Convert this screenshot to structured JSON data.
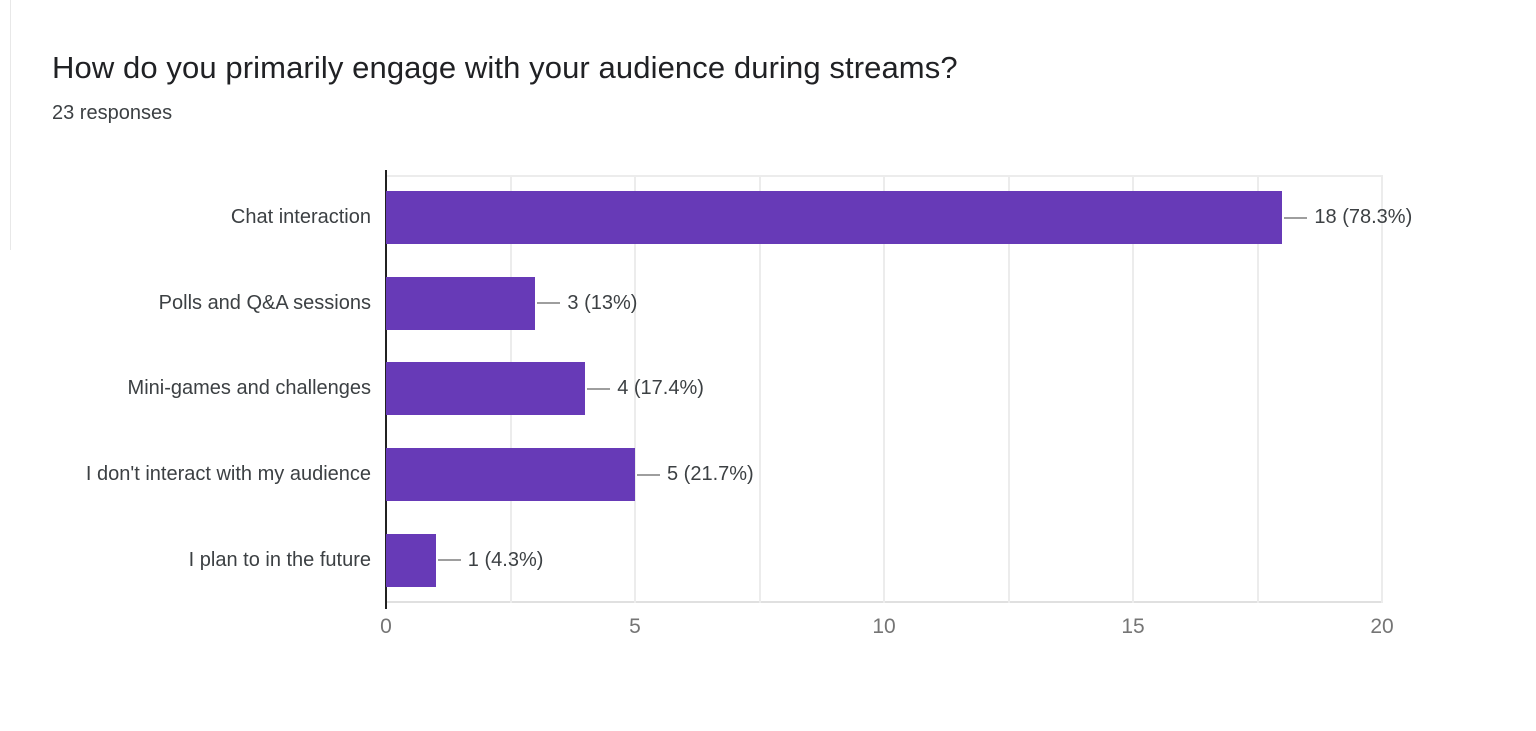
{
  "page": {
    "background": "#ffffff"
  },
  "chart_data": {
    "type": "bar",
    "orientation": "horizontal",
    "title": "How do you primarily engage with your audience during streams?",
    "subtitle": "23 responses",
    "total_responses": 23,
    "categories": [
      "Chat interaction",
      "Polls and Q&A sessions",
      "Mini-games and challenges",
      "I don't interact with my audience",
      "I plan to in the future"
    ],
    "values": [
      18,
      3,
      4,
      5,
      1
    ],
    "value_labels": [
      "18 (78.3%)",
      "3 (13%)",
      "4 (17.4%)",
      "5 (21.7%)",
      "1 (4.3%)"
    ],
    "xlim": [
      0,
      20
    ],
    "x_ticks": [
      0,
      5,
      10,
      15,
      20
    ],
    "gridlines": [
      2.5,
      5,
      7.5,
      10,
      12.5,
      15,
      17.5,
      20
    ],
    "grid_on": true,
    "legend_position": "none",
    "colors": {
      "bar": "#673ab7",
      "axis_line": "#212121",
      "gridline": "#ececec",
      "plot_bottom_line": "#e0e0e0",
      "connector": "#9e9e9e",
      "tick_label": "#757575",
      "category_label": "#3c4043",
      "value_label": "#3c4043",
      "title": "#202124",
      "subtitle": "#3c4043"
    }
  }
}
